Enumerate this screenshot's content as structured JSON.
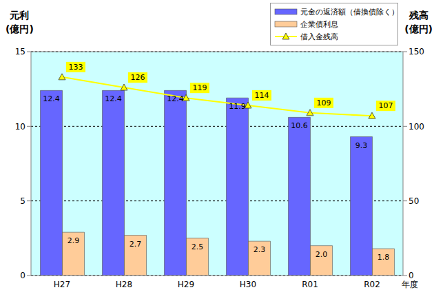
{
  "chart_data": {
    "type": "bar",
    "categories": [
      "H27",
      "H28",
      "H29",
      "H30",
      "R01",
      "R02"
    ],
    "xlabel": "年度",
    "ylabel": [
      "元利",
      "(億円)"
    ],
    "y2label": [
      "残高",
      "(億円)"
    ],
    "ylim": [
      0,
      15
    ],
    "yticks": [
      0,
      5,
      10,
      15
    ],
    "y2lim": [
      0,
      150
    ],
    "y2ticks": [
      0,
      50,
      100,
      150
    ],
    "grid": true,
    "data_labels": true,
    "legend": "upper right",
    "series": [
      {
        "name": "元金の返済額（借換債除く）",
        "type": "bar",
        "color": "#6666FF",
        "values": [
          12.4,
          12.4,
          12.4,
          11.9,
          10.6,
          9.3
        ]
      },
      {
        "name": "企業債利息",
        "type": "bar",
        "color": "#FFCC99",
        "values": [
          2.9,
          2.7,
          2.5,
          2.3,
          2.0,
          1.8
        ],
        "value_labels": [
          "2.9",
          "2.7",
          "2.5",
          "2.3",
          "2.0",
          "1.8"
        ]
      },
      {
        "name": "借入金残高",
        "type": "line",
        "color": "#FFFF00",
        "marker": "triangle",
        "axis": "y2",
        "values": [
          133,
          126,
          119,
          114,
          109,
          107
        ]
      }
    ]
  }
}
